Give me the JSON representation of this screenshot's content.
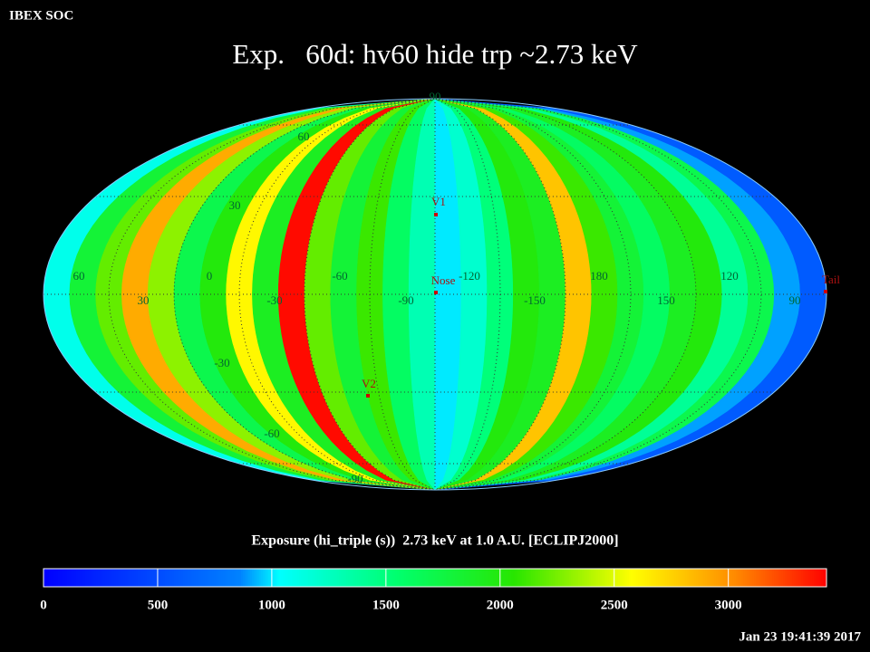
{
  "header": {
    "source": "IBEX SOC",
    "title": "Exp.   60d: hv60 hide trp ~2.73 keV",
    "timestamp": "Jan 23 19:41:39 2017"
  },
  "map": {
    "exposure_stripes": [
      1100,
      1800,
      2200,
      2900,
      2300,
      1700,
      2000,
      2600,
      1900,
      3400,
      2200,
      1800,
      2100,
      1600,
      1300,
      1000,
      1200,
      1500,
      2000,
      1900,
      2800,
      2100,
      1800,
      1600,
      1900,
      2000,
      1400,
      1700,
      900,
      600
    ],
    "longitude_labels": [
      "60",
      "30",
      "0",
      "-30",
      "-60",
      "-90",
      "-120",
      "-150",
      "180",
      "150",
      "120",
      "90"
    ],
    "latitude_labels": [
      "90",
      "60",
      "30",
      "-30",
      "-60",
      "-90"
    ],
    "markers": [
      "V1",
      "Nose",
      "V2",
      "Tail"
    ]
  },
  "colorbar": {
    "label": "Exposure (hi_triple (s))  2.73 keV at 1.0 A.U. [ECLIPJ2000]",
    "lim": [
      0,
      3430
    ],
    "ticks": [
      0,
      500,
      1000,
      1500,
      2000,
      2500,
      3000
    ]
  }
}
